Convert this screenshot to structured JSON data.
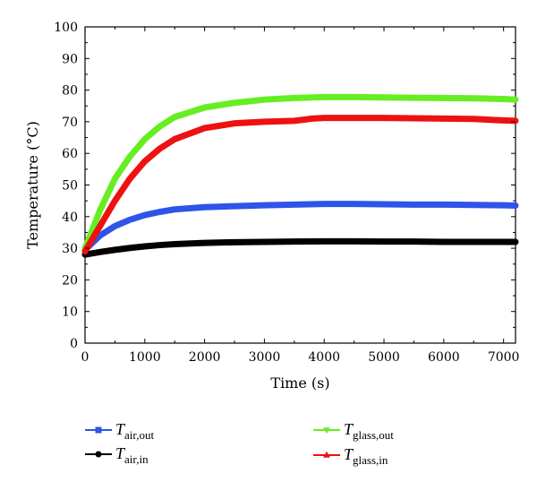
{
  "chart_data": {
    "type": "line",
    "xlabel": "Time (s)",
    "ylabel": "Temperature (°C)",
    "xlim": [
      0,
      7200
    ],
    "ylim": [
      0,
      100
    ],
    "x_ticks": [
      "0",
      "1000",
      "2000",
      "3000",
      "4000",
      "5000",
      "6000",
      "7000"
    ],
    "y_ticks": [
      "0",
      "10",
      "20",
      "30",
      "40",
      "50",
      "60",
      "70",
      "80",
      "90",
      "100"
    ],
    "grid": false,
    "legend_position": "bottom",
    "series": [
      {
        "name": "T_air,out",
        "legend_main": "T",
        "legend_sub": "air,out",
        "color": "#2e54e8",
        "marker": "square",
        "x": [
          0,
          250,
          500,
          750,
          1000,
          1250,
          1500,
          2000,
          2500,
          3000,
          3500,
          4000,
          4500,
          5000,
          5500,
          6000,
          6500,
          7000,
          7200
        ],
        "y": [
          29.5,
          34,
          37,
          39,
          40.5,
          41.5,
          42.3,
          43,
          43.3,
          43.6,
          43.8,
          44,
          44,
          43.9,
          43.8,
          43.8,
          43.7,
          43.6,
          43.5
        ]
      },
      {
        "name": "T_air,in",
        "legend_main": "T",
        "legend_sub": "air,in",
        "color": "#000000",
        "marker": "circle",
        "x": [
          0,
          250,
          500,
          750,
          1000,
          1250,
          1500,
          2000,
          2500,
          3000,
          3500,
          4000,
          4500,
          5000,
          5500,
          6000,
          6500,
          7000,
          7200
        ],
        "y": [
          28,
          28.8,
          29.5,
          30.1,
          30.6,
          31,
          31.3,
          31.7,
          31.9,
          32,
          32.1,
          32.2,
          32.2,
          32.1,
          32.1,
          32,
          32,
          32,
          32
        ]
      },
      {
        "name": "T_glass,out",
        "legend_main": "T",
        "legend_sub": "glass,out",
        "color": "#66ee22",
        "marker": "triangle-down",
        "x": [
          0,
          250,
          500,
          750,
          1000,
          1250,
          1500,
          2000,
          2500,
          3000,
          3500,
          4000,
          4500,
          5000,
          5500,
          6000,
          6500,
          7000,
          7200
        ],
        "y": [
          30,
          42,
          52,
          59,
          64.5,
          68.5,
          71.5,
          74.5,
          76,
          77,
          77.5,
          77.8,
          77.8,
          77.7,
          77.6,
          77.5,
          77.4,
          77.2,
          77
        ]
      },
      {
        "name": "T_glass,in",
        "legend_main": "T",
        "legend_sub": "glass,in",
        "color": "#ee1111",
        "marker": "triangle-up",
        "x": [
          0,
          250,
          500,
          750,
          1000,
          1250,
          1500,
          2000,
          2500,
          3000,
          3500,
          3800,
          4000,
          4500,
          5000,
          5500,
          6000,
          6500,
          6900,
          7200
        ],
        "y": [
          29,
          37,
          45,
          52,
          57.5,
          61.5,
          64.5,
          68,
          69.5,
          70,
          70.3,
          71,
          71.2,
          71.2,
          71.2,
          71.1,
          71,
          70.9,
          70.5,
          70.3
        ]
      }
    ]
  }
}
